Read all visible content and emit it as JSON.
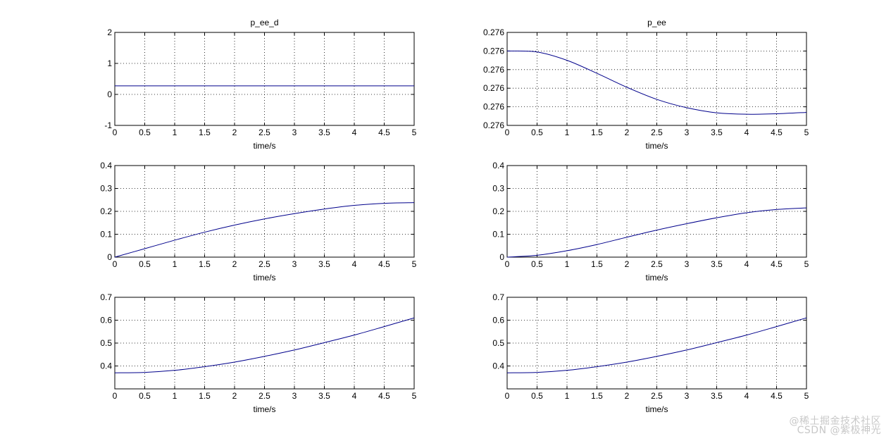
{
  "watermark": {
    "line1": "@稀土掘金技术社区",
    "line2": "CSDN @紫极神光"
  },
  "colors": {
    "line": "#00008b",
    "grid": "#000000",
    "axes": "#000000",
    "background": "#ffffff"
  },
  "chart_data": [
    {
      "type": "line",
      "title": "p_ee_d",
      "xlabel": "time/s",
      "ylabel": "",
      "xlim": [
        0,
        5
      ],
      "ylim": [
        -1,
        2
      ],
      "xticks": [
        "0",
        "0.5",
        "1",
        "1.5",
        "2",
        "2.5",
        "3",
        "3.5",
        "4",
        "4.5",
        "5"
      ],
      "yticks": [
        "-1",
        "0",
        "1",
        "2"
      ],
      "grid": true,
      "series": [
        {
          "x": [
            0,
            0.5,
            1,
            1.5,
            2,
            2.5,
            3,
            3.5,
            4,
            4.5,
            5
          ],
          "y": [
            0.276,
            0.276,
            0.276,
            0.276,
            0.276,
            0.276,
            0.276,
            0.276,
            0.276,
            0.276,
            0.276
          ]
        }
      ]
    },
    {
      "type": "line",
      "title": "p_ee",
      "xlabel": "time/s",
      "ylabel": "",
      "xlim": [
        0,
        5
      ],
      "ylim": [
        0,
        1
      ],
      "xticks": [
        "0",
        "0.5",
        "1",
        "1.5",
        "2",
        "2.5",
        "3",
        "3.5",
        "4",
        "4.5",
        "5"
      ],
      "yticks": [
        "0.276",
        "0.276",
        "0.276",
        "0.276",
        "0.276",
        "0.276"
      ],
      "grid": true,
      "series": [
        {
          "x": [
            0,
            0.5,
            1,
            1.5,
            2,
            2.5,
            3,
            3.5,
            4,
            4.5,
            5
          ],
          "y": [
            0.8,
            0.79,
            0.7,
            0.56,
            0.41,
            0.28,
            0.19,
            0.135,
            0.12,
            0.125,
            0.14
          ]
        }
      ]
    },
    {
      "type": "line",
      "title": "",
      "xlabel": "time/s",
      "ylabel": "",
      "xlim": [
        0,
        5
      ],
      "ylim": [
        0,
        0.4
      ],
      "xticks": [
        "0",
        "0.5",
        "1",
        "1.5",
        "2",
        "2.5",
        "3",
        "3.5",
        "4",
        "4.5",
        "5"
      ],
      "yticks": [
        "0",
        "0.1",
        "0.2",
        "0.3",
        "0.4"
      ],
      "grid": true,
      "series": [
        {
          "x": [
            0,
            0.5,
            1,
            1.5,
            2,
            2.5,
            3,
            3.5,
            4,
            4.5,
            5
          ],
          "y": [
            0.0,
            0.037,
            0.074,
            0.109,
            0.14,
            0.167,
            0.19,
            0.21,
            0.226,
            0.235,
            0.238
          ]
        }
      ]
    },
    {
      "type": "line",
      "title": "",
      "xlabel": "time/s",
      "ylabel": "",
      "xlim": [
        0,
        5
      ],
      "ylim": [
        0,
        0.4
      ],
      "xticks": [
        "0",
        "0.5",
        "1",
        "1.5",
        "2",
        "2.5",
        "3",
        "3.5",
        "4",
        "4.5",
        "5"
      ],
      "yticks": [
        "0",
        "0.1",
        "0.2",
        "0.3",
        "0.4"
      ],
      "grid": true,
      "series": [
        {
          "x": [
            0,
            0.5,
            1,
            1.5,
            2,
            2.5,
            3,
            3.5,
            4,
            4.5,
            5
          ],
          "y": [
            0.0,
            0.008,
            0.028,
            0.055,
            0.087,
            0.118,
            0.146,
            0.172,
            0.194,
            0.208,
            0.215
          ]
        }
      ]
    },
    {
      "type": "line",
      "title": "",
      "xlabel": "time/s",
      "ylabel": "",
      "xlim": [
        0,
        5
      ],
      "ylim": [
        0.3,
        0.7
      ],
      "xticks": [
        "0",
        "0.5",
        "1",
        "1.5",
        "2",
        "2.5",
        "3",
        "3.5",
        "4",
        "4.5",
        "5"
      ],
      "yticks": [
        "0.4",
        "0.5",
        "0.6",
        "0.7"
      ],
      "grid": true,
      "series": [
        {
          "x": [
            0,
            0.5,
            1,
            1.5,
            2,
            2.5,
            3,
            3.5,
            4,
            4.5,
            5
          ],
          "y": [
            0.37,
            0.372,
            0.381,
            0.397,
            0.417,
            0.442,
            0.47,
            0.502,
            0.535,
            0.572,
            0.61
          ]
        }
      ]
    },
    {
      "type": "line",
      "title": "",
      "xlabel": "time/s",
      "ylabel": "",
      "xlim": [
        0,
        5
      ],
      "ylim": [
        0.3,
        0.7
      ],
      "xticks": [
        "0",
        "0.5",
        "1",
        "1.5",
        "2",
        "2.5",
        "3",
        "3.5",
        "4",
        "4.5",
        "5"
      ],
      "yticks": [
        "0.4",
        "0.5",
        "0.6",
        "0.7"
      ],
      "grid": true,
      "series": [
        {
          "x": [
            0,
            0.5,
            1,
            1.5,
            2,
            2.5,
            3,
            3.5,
            4,
            4.5,
            5
          ],
          "y": [
            0.37,
            0.372,
            0.381,
            0.397,
            0.417,
            0.442,
            0.47,
            0.502,
            0.535,
            0.572,
            0.61
          ]
        }
      ]
    }
  ]
}
